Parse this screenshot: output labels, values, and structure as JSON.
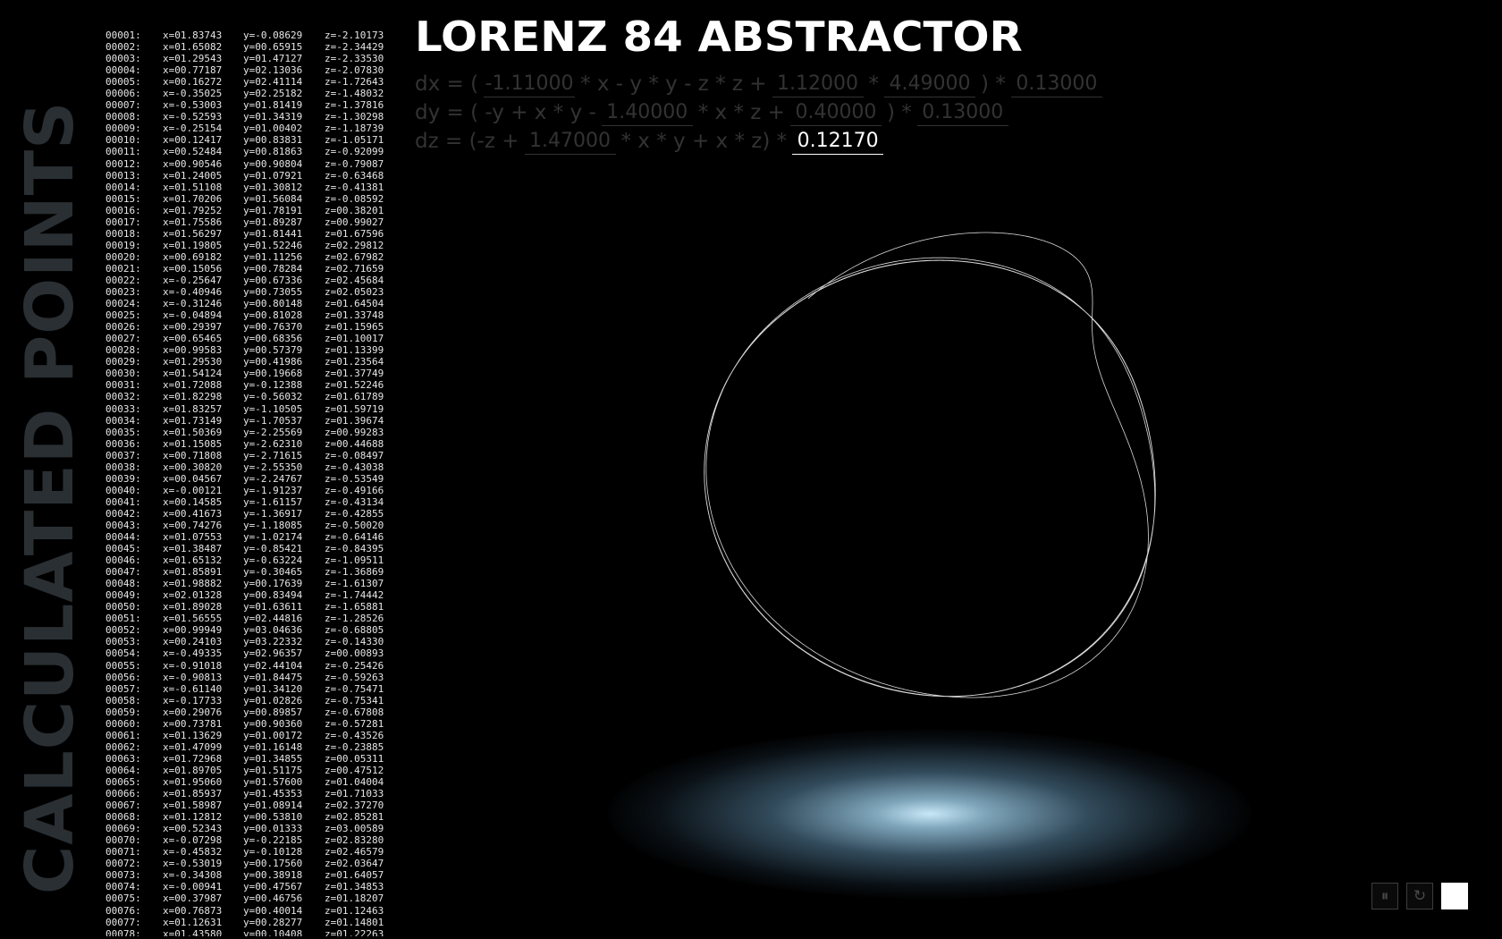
{
  "sidebar_title": "CALCULATED POINTS",
  "app_title": "LORENZ 84 ABSTRACTOR",
  "equations": {
    "dx": {
      "t1": "dx = (",
      "a": "-1.11000",
      "t2": "* x - y * y - z * z +",
      "f": "1.12000",
      "t3": "*",
      "F": "4.49000",
      "t4": ") *",
      "s": "0.13000"
    },
    "dy": {
      "t1": "dy = ( -y + x * y -",
      "b": "1.40000",
      "t2": "* x * z +",
      "g": "0.40000",
      "t3": ") *",
      "s": "0.13000"
    },
    "dz": {
      "t1": "dz = (-z +",
      "b": "1.47000",
      "t2": "* x * y + x * z) *",
      "s": "0.12170"
    }
  },
  "controls": {
    "pause_icon": "pause-icon",
    "reset_icon": "reset-icon",
    "pause_glyph": "⏸",
    "reset_glyph": "↻"
  },
  "colors": {
    "background": "#000000",
    "sidebar_title": "#2a2f33",
    "inactive_equation": "#333333",
    "active_value": "#ffffff",
    "glow": "#c8e8f8"
  },
  "points": [
    [
      "00001:",
      "x=01.83743",
      "y=-0.08629",
      "z=-2.10173"
    ],
    [
      "00002:",
      "x=01.65082",
      "y=00.65915",
      "z=-2.34429"
    ],
    [
      "00003:",
      "x=01.29543",
      "y=01.47127",
      "z=-2.33530"
    ],
    [
      "00004:",
      "x=00.77187",
      "y=02.13036",
      "z=-2.07830"
    ],
    [
      "00005:",
      "x=00.16272",
      "y=02.41114",
      "z=-1.72643"
    ],
    [
      "00006:",
      "x=-0.35025",
      "y=02.25182",
      "z=-1.48032"
    ],
    [
      "00007:",
      "x=-0.53003",
      "y=01.81419",
      "z=-1.37816"
    ],
    [
      "00008:",
      "x=-0.52593",
      "y=01.34319",
      "z=-1.30298"
    ],
    [
      "00009:",
      "x=-0.25154",
      "y=01.00402",
      "z=-1.18739"
    ],
    [
      "00010:",
      "x=00.12417",
      "y=00.83831",
      "z=-1.05171"
    ],
    [
      "00011:",
      "x=00.52484",
      "y=00.81863",
      "z=-0.92099"
    ],
    [
      "00012:",
      "x=00.90546",
      "y=00.90804",
      "z=-0.79087"
    ],
    [
      "00013:",
      "x=01.24005",
      "y=01.07921",
      "z=-0.63468"
    ],
    [
      "00014:",
      "x=01.51108",
      "y=01.30812",
      "z=-0.41381"
    ],
    [
      "00015:",
      "x=01.70206",
      "y=01.56084",
      "z=-0.08592"
    ],
    [
      "00016:",
      "x=01.79252",
      "y=01.78191",
      "z=00.38201"
    ],
    [
      "00017:",
      "x=01.75586",
      "y=01.89287",
      "z=00.99027"
    ],
    [
      "00018:",
      "x=01.56297",
      "y=01.81441",
      "z=01.67596"
    ],
    [
      "00019:",
      "x=01.19805",
      "y=01.52246",
      "z=02.29812"
    ],
    [
      "00020:",
      "x=00.69182",
      "y=01.11256",
      "z=02.67982"
    ],
    [
      "00021:",
      "x=00.15056",
      "y=00.78284",
      "z=02.71659"
    ],
    [
      "00022:",
      "x=-0.25647",
      "y=00.67336",
      "z=02.45684"
    ],
    [
      "00023:",
      "x=-0.40946",
      "y=00.73055",
      "z=02.05023"
    ],
    [
      "00024:",
      "x=-0.31246",
      "y=00.80148",
      "z=01.64504"
    ],
    [
      "00025:",
      "x=-0.04894",
      "y=00.81028",
      "z=01.33748"
    ],
    [
      "00026:",
      "x=00.29397",
      "y=00.76370",
      "z=01.15965"
    ],
    [
      "00027:",
      "x=00.65465",
      "y=00.68356",
      "z=01.10017"
    ],
    [
      "00028:",
      "x=00.99583",
      "y=00.57379",
      "z=01.13399"
    ],
    [
      "00029:",
      "x=01.29530",
      "y=00.41986",
      "z=01.23564"
    ],
    [
      "00030:",
      "x=01.54124",
      "y=00.19668",
      "z=01.37749"
    ],
    [
      "00031:",
      "x=01.72088",
      "y=-0.12388",
      "z=01.52246"
    ],
    [
      "00032:",
      "x=01.82298",
      "y=-0.56032",
      "z=01.61789"
    ],
    [
      "00033:",
      "x=01.83257",
      "y=-1.10505",
      "z=01.59719"
    ],
    [
      "00034:",
      "x=01.73149",
      "y=-1.70537",
      "z=01.39674"
    ],
    [
      "00035:",
      "x=01.50369",
      "y=-2.25569",
      "z=00.99283"
    ],
    [
      "00036:",
      "x=01.15085",
      "y=-2.62310",
      "z=00.44688"
    ],
    [
      "00037:",
      "x=00.71808",
      "y=-2.71615",
      "z=-0.08497"
    ],
    [
      "00038:",
      "x=00.30820",
      "y=-2.55350",
      "z=-0.43038"
    ],
    [
      "00039:",
      "x=00.04567",
      "y=-2.24767",
      "z=-0.53549"
    ],
    [
      "00040:",
      "x=-0.00121",
      "y=-1.91237",
      "z=-0.49166"
    ],
    [
      "00041:",
      "x=00.14585",
      "y=-1.61157",
      "z=-0.43134"
    ],
    [
      "00042:",
      "x=00.41673",
      "y=-1.36917",
      "z=-0.42855"
    ],
    [
      "00043:",
      "x=00.74276",
      "y=-1.18085",
      "z=-0.50020"
    ],
    [
      "00044:",
      "x=01.07553",
      "y=-1.02174",
      "z=-0.64146"
    ],
    [
      "00045:",
      "x=01.38487",
      "y=-0.85421",
      "z=-0.84395"
    ],
    [
      "00046:",
      "x=01.65132",
      "y=-0.63224",
      "z=-1.09511"
    ],
    [
      "00047:",
      "x=01.85891",
      "y=-0.30465",
      "z=-1.36869"
    ],
    [
      "00048:",
      "x=01.98882",
      "y=00.17639",
      "z=-1.61307"
    ],
    [
      "00049:",
      "x=02.01328",
      "y=00.83494",
      "z=-1.74442"
    ],
    [
      "00050:",
      "x=01.89028",
      "y=01.63611",
      "z=-1.65881"
    ],
    [
      "00051:",
      "x=01.56555",
      "y=02.44816",
      "z=-1.28526"
    ],
    [
      "00052:",
      "x=00.99949",
      "y=03.04636",
      "z=-0.68805"
    ],
    [
      "00053:",
      "x=00.24103",
      "y=03.22332",
      "z=-0.14330"
    ],
    [
      "00054:",
      "x=-0.49335",
      "y=02.96357",
      "z=00.00893"
    ],
    [
      "00055:",
      "x=-0.91018",
      "y=02.44104",
      "z=-0.25426"
    ],
    [
      "00056:",
      "x=-0.90813",
      "y=01.84475",
      "z=-0.59263"
    ],
    [
      "00057:",
      "x=-0.61140",
      "y=01.34120",
      "z=-0.75471"
    ],
    [
      "00058:",
      "x=-0.17733",
      "y=01.02826",
      "z=-0.75341"
    ],
    [
      "00059:",
      "x=00.29076",
      "y=00.89857",
      "z=-0.67808"
    ],
    [
      "00060:",
      "x=00.73781",
      "y=00.90360",
      "z=-0.57281"
    ],
    [
      "00061:",
      "x=01.13629",
      "y=01.00172",
      "z=-0.43526"
    ],
    [
      "00062:",
      "x=01.47099",
      "y=01.16148",
      "z=-0.23885"
    ],
    [
      "00063:",
      "x=01.72968",
      "y=01.34855",
      "z=00.05311"
    ],
    [
      "00064:",
      "x=01.89705",
      "y=01.51175",
      "z=00.47512"
    ],
    [
      "00065:",
      "x=01.95060",
      "y=01.57600",
      "z=01.04004"
    ],
    [
      "00066:",
      "x=01.85937",
      "y=01.45353",
      "z=01.71033"
    ],
    [
      "00067:",
      "x=01.58987",
      "y=01.08914",
      "z=02.37270"
    ],
    [
      "00068:",
      "x=01.12812",
      "y=00.53810",
      "z=02.85281"
    ],
    [
      "00069:",
      "x=00.52343",
      "y=00.01333",
      "z=03.00589"
    ],
    [
      "00070:",
      "x=-0.07298",
      "y=-0.22185",
      "z=02.83280"
    ],
    [
      "00071:",
      "x=-0.45832",
      "y=-0.10128",
      "z=02.46579"
    ],
    [
      "00072:",
      "x=-0.53019",
      "y=00.17560",
      "z=02.03647"
    ],
    [
      "00073:",
      "x=-0.34308",
      "y=00.38918",
      "z=01.64057"
    ],
    [
      "00074:",
      "x=-0.00941",
      "y=00.47567",
      "z=01.34853"
    ],
    [
      "00075:",
      "x=00.37987",
      "y=00.46756",
      "z=01.18207"
    ],
    [
      "00076:",
      "x=00.76873",
      "y=00.40014",
      "z=01.12463"
    ],
    [
      "00077:",
      "x=01.12631",
      "y=00.28277",
      "z=01.14801"
    ],
    [
      "00078:",
      "x=01.43580",
      "y=00.10408",
      "z=01.22263"
    ]
  ]
}
